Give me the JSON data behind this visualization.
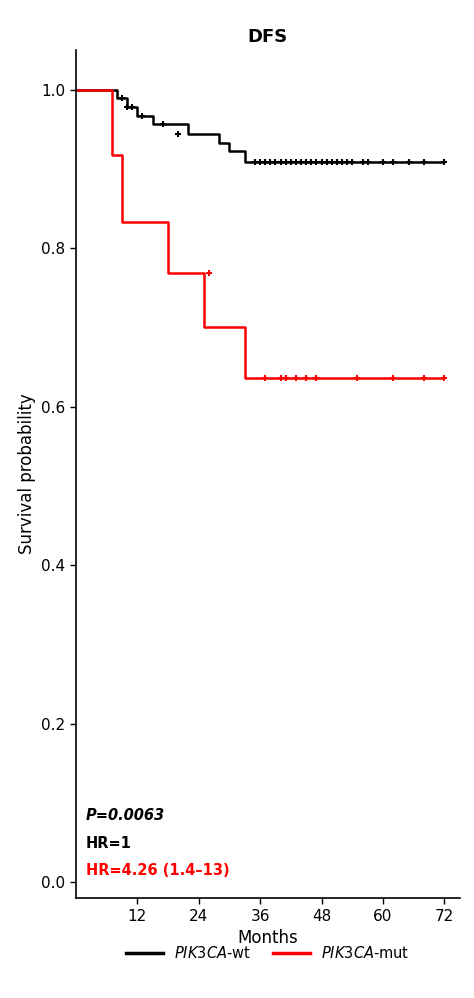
{
  "title": "DFS",
  "xlabel": "Months",
  "ylabel": "Survival probability",
  "xlim": [
    0,
    75
  ],
  "ylim": [
    -0.02,
    1.05
  ],
  "xticks": [
    12,
    24,
    36,
    48,
    60,
    72
  ],
  "yticks": [
    0.0,
    0.2,
    0.4,
    0.6,
    0.8,
    1.0
  ],
  "wt_color": "#000000",
  "mut_color": "#ff0000",
  "annotation_pval": "P=0.0063",
  "annotation_hr1": "HR=1",
  "annotation_hr2": "HR=4.26 (1.4–13)",
  "wt_times": [
    0,
    8,
    8,
    10,
    10,
    12,
    12,
    15,
    15,
    22,
    22,
    28,
    28,
    30,
    30,
    33,
    33,
    72
  ],
  "wt_surv": [
    1.0,
    1.0,
    0.989,
    0.989,
    0.978,
    0.978,
    0.967,
    0.967,
    0.956,
    0.956,
    0.944,
    0.944,
    0.933,
    0.933,
    0.922,
    0.922,
    0.909,
    0.909
  ],
  "wt_censor_t": [
    9,
    10,
    11,
    13,
    17,
    20,
    35,
    36,
    37,
    38,
    39,
    40,
    41,
    42,
    43,
    44,
    45,
    46,
    47,
    48,
    49,
    50,
    51,
    52,
    53,
    54,
    56,
    57,
    60,
    62,
    65,
    68,
    72
  ],
  "wt_censor_s": [
    0.989,
    0.978,
    0.978,
    0.967,
    0.956,
    0.944,
    0.909,
    0.909,
    0.909,
    0.909,
    0.909,
    0.909,
    0.909,
    0.909,
    0.909,
    0.909,
    0.909,
    0.909,
    0.909,
    0.909,
    0.909,
    0.909,
    0.909,
    0.909,
    0.909,
    0.909,
    0.909,
    0.909,
    0.909,
    0.909,
    0.909,
    0.909,
    0.909
  ],
  "mut_times": [
    0,
    7,
    7,
    9,
    9,
    18,
    18,
    25,
    25,
    33,
    33,
    36,
    36,
    44,
    44,
    72
  ],
  "mut_surv": [
    1.0,
    1.0,
    0.917,
    0.917,
    0.833,
    0.833,
    0.769,
    0.769,
    0.7,
    0.7,
    0.636,
    0.636,
    0.636,
    0.636,
    0.636,
    0.636
  ],
  "mut_censor_t": [
    26,
    37,
    40,
    41,
    43,
    45,
    47,
    55,
    62,
    68,
    72
  ],
  "mut_censor_s": [
    0.769,
    0.636,
    0.636,
    0.636,
    0.636,
    0.636,
    0.636,
    0.636,
    0.636,
    0.636,
    0.636
  ]
}
